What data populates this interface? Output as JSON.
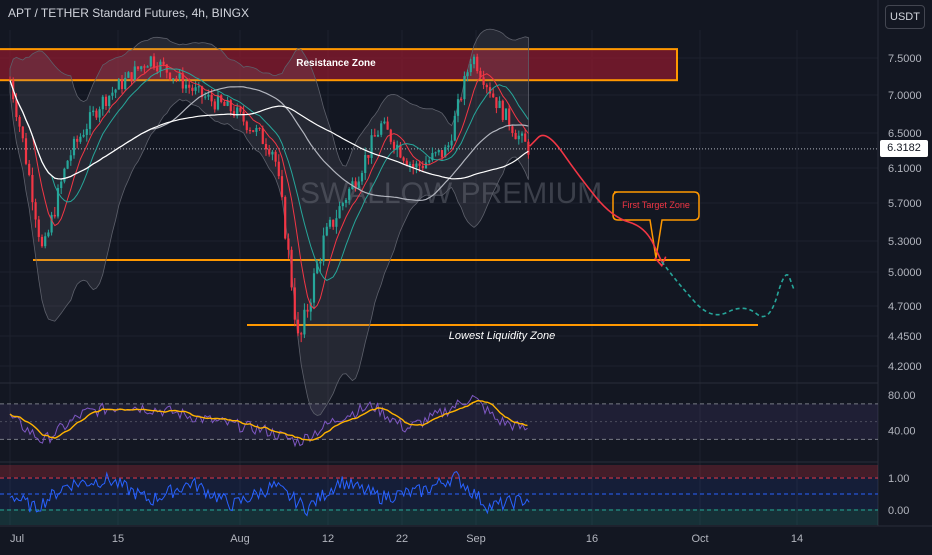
{
  "header": {
    "title": "APT / TETHER Standard Futures, 4h, BINGX",
    "currency": "USDT",
    "last_price": "6.3182",
    "watermark": "SWALLOW PREMIUM"
  },
  "annotations": {
    "resistance_zone": "Resistance Zone",
    "first_target_zone": "First Target Zone",
    "lowest_liquidity_zone": "Lowest Liquidity Zone"
  },
  "colors": {
    "background": "#131722",
    "up": "#26a69a",
    "down": "#f23645",
    "zone_orange": "#ff9800",
    "rsi_line": "#7e57c2",
    "rsi_ma": "#ffb300",
    "osc_line": "#2962ff"
  },
  "chart_data": [
    {
      "type": "candlestick",
      "title": "APT / TETHER Standard Futures, 4h, BINGX",
      "x_axis_labels": [
        "Jul",
        "15",
        "Aug",
        "12",
        "22",
        "Sep",
        "16",
        "Oct",
        "14"
      ],
      "y_axis_labels": [
        "7.5000",
        "7.0000",
        "6.5000",
        "6.1000",
        "5.7000",
        "5.3000",
        "5.0000",
        "4.7000",
        "4.4500",
        "4.2000"
      ],
      "ylim": [
        4.1,
        7.75
      ],
      "last_price": 6.3182,
      "keypoints": [
        {
          "date": "Jul 1",
          "price": 7.2
        },
        {
          "date": "Jul 5",
          "price": 5.15
        },
        {
          "date": "Jul 8",
          "price": 6.2
        },
        {
          "date": "Jul 12",
          "price": 6.9
        },
        {
          "date": "Jul 18",
          "price": 7.5
        },
        {
          "date": "Jul 24",
          "price": 7.0
        },
        {
          "date": "Jul 28",
          "price": 6.8
        },
        {
          "date": "Aug 2",
          "price": 6.3
        },
        {
          "date": "Aug 5",
          "price": 4.35
        },
        {
          "date": "Aug 8",
          "price": 5.3
        },
        {
          "date": "Aug 12",
          "price": 6.0
        },
        {
          "date": "Aug 15",
          "price": 6.6
        },
        {
          "date": "Aug 19",
          "price": 6.1
        },
        {
          "date": "Aug 23",
          "price": 6.3
        },
        {
          "date": "Aug 26",
          "price": 7.55
        },
        {
          "date": "Aug 29",
          "price": 6.9
        },
        {
          "date": "Sep 1",
          "price": 6.4
        },
        {
          "date": "Sep 2",
          "price": 6.32
        }
      ],
      "resistance_zone": [
        7.2,
        7.62
      ],
      "first_target_level": 5.1,
      "lowest_liquidity_level": 4.55,
      "projection": [
        {
          "date": "Sep 2",
          "price": 6.35
        },
        {
          "date": "Sep 4",
          "price": 6.55
        },
        {
          "date": "Sep 8",
          "price": 6.0
        },
        {
          "date": "Sep 12",
          "price": 5.55
        },
        {
          "date": "Sep 16",
          "price": 5.45
        },
        {
          "date": "Sep 18",
          "price": 5.1
        },
        {
          "date": "Sep 20",
          "price": 4.9
        },
        {
          "date": "Sep 24",
          "price": 4.58
        },
        {
          "date": "Sep 28",
          "price": 4.72
        },
        {
          "date": "Oct 1",
          "price": 4.55
        },
        {
          "date": "Oct 3",
          "price": 5.05
        },
        {
          "date": "Oct 4",
          "price": 4.85
        }
      ]
    },
    {
      "type": "line",
      "y_axis_labels": [
        "80.00",
        "40.00"
      ],
      "ylim": [
        20,
        90
      ],
      "upper_band": 70,
      "lower_band": 30,
      "keypoints": [
        {
          "date": "Jul 1",
          "value": 55
        },
        {
          "date": "Jul 5",
          "value": 28
        },
        {
          "date": "Jul 10",
          "value": 60
        },
        {
          "date": "Jul 15",
          "value": 68
        },
        {
          "date": "Jul 20",
          "value": 62
        },
        {
          "date": "Jul 26",
          "value": 50
        },
        {
          "date": "Aug 1",
          "value": 40
        },
        {
          "date": "Aug 5",
          "value": 27
        },
        {
          "date": "Aug 10",
          "value": 55
        },
        {
          "date": "Aug 14",
          "value": 68
        },
        {
          "date": "Aug 18",
          "value": 42
        },
        {
          "date": "Aug 22",
          "value": 58
        },
        {
          "date": "Aug 26",
          "value": 78
        },
        {
          "date": "Aug 29",
          "value": 52
        },
        {
          "date": "Sep 2",
          "value": 40
        }
      ]
    },
    {
      "type": "line",
      "y_axis_labels": [
        "1.00",
        "0.00"
      ],
      "ylim": [
        -0.15,
        1.3
      ],
      "keypoints": [
        {
          "date": "Jul 1",
          "value": 0.5
        },
        {
          "date": "Jul 4",
          "value": 0.05
        },
        {
          "date": "Jul 8",
          "value": 0.8
        },
        {
          "date": "Jul 13",
          "value": 0.95
        },
        {
          "date": "Jul 18",
          "value": 0.3
        },
        {
          "date": "Jul 23",
          "value": 0.85
        },
        {
          "date": "Jul 28",
          "value": 0.15
        },
        {
          "date": "Aug 2",
          "value": 0.75
        },
        {
          "date": "Aug 6",
          "value": 0.05
        },
        {
          "date": "Aug 10",
          "value": 0.9
        },
        {
          "date": "Aug 15",
          "value": 0.4
        },
        {
          "date": "Aug 20",
          "value": 0.6
        },
        {
          "date": "Aug 24",
          "value": 1.05
        },
        {
          "date": "Aug 28",
          "value": 0.1
        },
        {
          "date": "Sep 2",
          "value": 0.35
        }
      ]
    }
  ]
}
